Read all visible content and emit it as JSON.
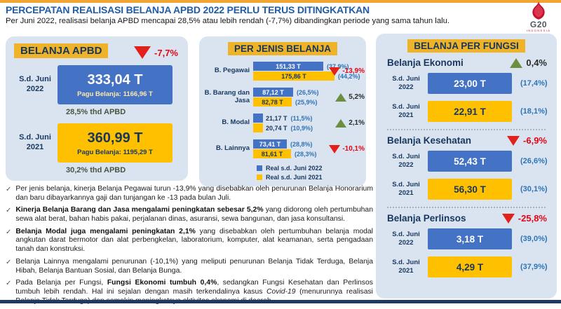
{
  "header": {
    "title": "PERCEPATAN REALISASI BELANJA APBD 2022 PERLU TERUS DITINGKATKAN",
    "subtitle": "Per Juni 2022, realisasi belanja APBD mencapai 28,5% atau lebih rendah (-7,7%) dibandingkan periode yang sama tahun lalu.",
    "logo_text": "G20",
    "logo_sub": "INDONESIA"
  },
  "left_panel": {
    "title": "BELANJA APBD",
    "change": "-7,7%",
    "change_dir": "down",
    "rows": [
      {
        "period": "S.d. Juni",
        "year": "2022",
        "value": "333,04 T",
        "pagu": "Pagu Belanja: 1166,96 T",
        "pct": "28,5% thd APBD"
      },
      {
        "period": "S.d. Juni",
        "year": "2021",
        "value": "360,99 T",
        "pagu": "Pagu Belanja: 1195,29 T",
        "pct": "30,2% thd APBD"
      }
    ]
  },
  "mid_panel": {
    "title": "PER JENIS BELANJA",
    "groups": [
      {
        "label": "B. Pegawai",
        "v2022": "151,33 T",
        "p2022": "(37,9%)",
        "v2021": "175,86 T",
        "p2021": "(44,2%)",
        "change": "-13,9%",
        "dir": "down"
      },
      {
        "label": "B. Barang dan Jasa",
        "v2022": "87,12 T",
        "p2022": "(26,5%)",
        "v2021": "82,78 T",
        "p2021": "(25,9%)",
        "change": "5,2%",
        "dir": "up"
      },
      {
        "label": "B. Modal",
        "v2022": "21,17 T",
        "p2022": "(11,5%)",
        "v2021": "20,74 T",
        "p2021": "(10,9%)",
        "change": "2,1%",
        "dir": "up"
      },
      {
        "label": "B. Lainnya",
        "v2022": "73,41 T",
        "p2022": "(28,8%)",
        "v2021": "81,61 T",
        "p2021": "(28,3%)",
        "change": "-10,1%",
        "dir": "down"
      }
    ],
    "legend": [
      {
        "label": "Real s.d. Juni 2022",
        "color": "#4472C4"
      },
      {
        "label": "Real s.d. Juni 2021",
        "color": "#FFC000"
      }
    ]
  },
  "right_panel": {
    "title": "BELANJA PER FUNGSI",
    "sections": [
      {
        "name": "Belanja Ekonomi",
        "change": "0,4%",
        "dir": "up",
        "rows": [
          {
            "period": "S.d. Juni",
            "year": "2022",
            "value": "23,00 T",
            "pct": "(17,4%)"
          },
          {
            "period": "S.d. Juni",
            "year": "2021",
            "value": "22,91 T",
            "pct": "(18,1%)"
          }
        ]
      },
      {
        "name": "Belanja Kesehatan",
        "change": "-6,9%",
        "dir": "down",
        "rows": [
          {
            "period": "S.d. Juni",
            "year": "2022",
            "value": "52,43 T",
            "pct": "(26,6%)"
          },
          {
            "period": "S.d. Juni",
            "year": "2021",
            "value": "56,30 T",
            "pct": "(30,1%)"
          }
        ]
      },
      {
        "name": "Belanja Perlinsos",
        "change": "-25,8%",
        "dir": "down",
        "rows": [
          {
            "period": "S.d. Juni",
            "year": "2022",
            "value": "3,18 T",
            "pct": "(39,0%)"
          },
          {
            "period": "S.d. Juni",
            "year": "2021",
            "value": "4,29 T",
            "pct": "(37,9%)"
          }
        ]
      }
    ]
  },
  "bullets": [
    {
      "parts": [
        {
          "t": "Per jenis belanja, kinerja Belanja Pegawai turun -13,9% yang disebabkan oleh penurunan Belanja Honorarium dan baru dibayarkannya gaji dan tunjangan ke -13 pada bulan Juli.",
          "b": false
        }
      ]
    },
    {
      "parts": [
        {
          "t": "Kinerja Belanja Barang dan Jasa mengalami peningkatan sebesar 5,2%",
          "b": true
        },
        {
          "t": " yang didorong oleh pertumbuhan sewa alat berat, bahan habis pakai, perjalanan dinas, asuransi, sewa bangunan, dan jasa konsultansi.",
          "b": false
        }
      ]
    },
    {
      "parts": [
        {
          "t": "Belanja Modal juga mengalami peningkatan 2,1%",
          "b": true
        },
        {
          "t": " yang disebabkan oleh pertumbuhan belanja modal angkutan darat bermotor dan alat perbengkelan, laboratorium, komputer, alat keamanan, serta pengadaan tanah dan konstruksi.",
          "b": false
        }
      ]
    },
    {
      "parts": [
        {
          "t": "Belanja Lainnya mengalami penurunan (-10,1%) yang meliputi penurunan Belanja Tidak Terduga, Belanja Hibah, Belanja Bantuan Sosial, dan Belanja Bunga.",
          "b": false
        }
      ]
    },
    {
      "parts": [
        {
          "t": "Pada Belanja per Fungsi, ",
          "b": false
        },
        {
          "t": "Fungsi Ekonomi tumbuh 0,4%",
          "b": true
        },
        {
          "t": ", sedangkan Fungsi Kesehatan dan Perlinsos tumbuh lebih rendah. Hal ini sejalan dengan masih terkendalinya kasus ",
          "b": false
        },
        {
          "t": "Covid-19",
          "b": false,
          "i": true
        },
        {
          "t": " (menurunnya realisasi Belanja Tidak Terduga) dan semakin meningkatnya aktivitas ekonomi di daerah.",
          "b": false
        }
      ]
    }
  ],
  "colors": {
    "bar_2022": "#4472C4",
    "bar_2021": "#FFC000",
    "panel_bg": "#DAE4F1",
    "chip_bg": "#EFB32A",
    "navy_text": "#17375E",
    "title_blue": "#1F5CA9",
    "negative_red": "#E30613",
    "positive_green": "#6B8F3F",
    "pct_blue": "#2E74B5",
    "top_strip": "#F2A431",
    "bottom_strip": "#1F3864"
  },
  "chart_data": [
    {
      "type": "bar",
      "title": "BELANJA APBD",
      "categories": [
        "S.d. Juni 2022",
        "S.d. Juni 2021"
      ],
      "values": [
        333.04,
        360.99
      ],
      "pagu_belanja": [
        1166.96,
        1195.29
      ],
      "pct_thd_apbd": [
        28.5,
        30.2
      ],
      "change_pct": -7.7,
      "unit": "T (triliun)"
    },
    {
      "type": "bar",
      "title": "PER JENIS BELANJA",
      "categories": [
        "B. Pegawai",
        "B. Barang dan Jasa",
        "B. Modal",
        "B. Lainnya"
      ],
      "series": [
        {
          "name": "Real s.d. Juni 2022",
          "values": [
            151.33,
            87.12,
            21.17,
            73.41
          ],
          "pct": [
            37.9,
            26.5,
            11.5,
            28.8
          ]
        },
        {
          "name": "Real s.d. Juni 2021",
          "values": [
            175.86,
            82.78,
            20.74,
            81.61
          ],
          "pct": [
            44.2,
            25.9,
            10.9,
            28.3
          ]
        }
      ],
      "change_pct": [
        -13.9,
        5.2,
        2.1,
        -10.1
      ],
      "unit": "T (triliun)",
      "legend_position": "bottom-left"
    },
    {
      "type": "bar",
      "title": "BELANJA PER FUNGSI",
      "categories": [
        "Belanja Ekonomi",
        "Belanja Kesehatan",
        "Belanja Perlinsos"
      ],
      "series": [
        {
          "name": "S.d. Juni 2022",
          "values": [
            23.0,
            52.43,
            3.18
          ],
          "pct": [
            17.4,
            26.6,
            39.0
          ]
        },
        {
          "name": "S.d. Juni 2021",
          "values": [
            22.91,
            56.3,
            4.29
          ],
          "pct": [
            18.1,
            30.1,
            37.9
          ]
        }
      ],
      "change_pct": [
        0.4,
        -6.9,
        -25.8
      ],
      "unit": "T (triliun)"
    }
  ]
}
